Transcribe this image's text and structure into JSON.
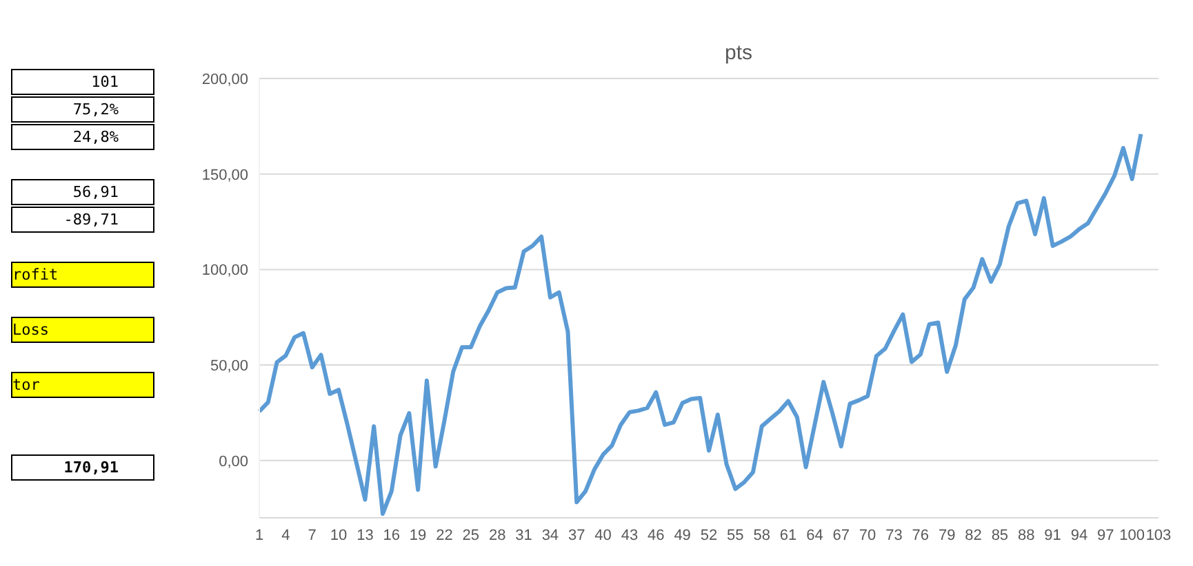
{
  "chart_data": {
    "type": "line",
    "title": "pts",
    "categories": [
      "1",
      null,
      null,
      "4",
      null,
      null,
      "7",
      null,
      null,
      "10",
      null,
      null,
      "13",
      null,
      null,
      "16",
      null,
      null,
      "19",
      null,
      null,
      "22",
      null,
      null,
      "25",
      null,
      null,
      "28",
      null,
      null,
      "31",
      null,
      null,
      "34",
      null,
      null,
      "37",
      null,
      null,
      "40",
      null,
      null,
      "43",
      null,
      null,
      "46",
      null,
      null,
      "49",
      null,
      null,
      "52",
      null,
      null,
      "55",
      null,
      null,
      "58",
      null,
      null,
      "61",
      null,
      null,
      "64",
      null,
      null,
      "67",
      null,
      null,
      "70",
      null,
      null,
      "73",
      null,
      null,
      "76",
      null,
      null,
      "79",
      null,
      null,
      "82",
      null,
      null,
      "85",
      null,
      null,
      "88",
      null,
      null,
      "91",
      null,
      null,
      "94",
      null,
      null,
      "97",
      null,
      null,
      "100",
      null,
      null,
      "103"
    ],
    "series": [
      {
        "color": "#5b9bd5",
        "values": [
          25.7,
          30.5,
          51.4,
          54.9,
          64.5,
          66.7,
          48.8,
          55.3,
          34.9,
          37.0,
          18.7,
          -0.9,
          -20.5,
          17.9,
          -27.9,
          -16.1,
          13.1,
          24.8,
          -15.3,
          41.8,
          -3.1,
          20.9,
          46.6,
          59.3,
          59.3,
          70.2,
          78.4,
          88.0,
          90.2,
          90.6,
          109.4,
          112.4,
          117.2,
          85.4,
          88.0,
          67.5,
          -21.8,
          -16.1,
          -4.8,
          3.1,
          7.8,
          18.7,
          25.3,
          26.1,
          27.5,
          35.7,
          18.7,
          20.0,
          30.1,
          32.2,
          32.7,
          5.2,
          24.0,
          -2.0,
          -14.9,
          -11.4,
          -6.1,
          17.9,
          21.9,
          25.8,
          31.1,
          22.7,
          -3.5,
          18.8,
          41.1,
          24.9,
          7.4,
          29.7,
          31.5,
          33.7,
          54.7,
          58.6,
          67.8,
          76.5,
          51.6,
          55.5,
          71.3,
          72.2,
          46.4,
          60.4,
          84.4,
          90.5,
          105.4,
          93.6,
          102.8,
          122.5,
          134.7,
          136.0,
          118.5,
          137.3,
          112.4,
          114.6,
          117.2,
          121.1,
          124.2,
          132.1,
          140.0,
          149.1,
          163.6,
          147.4,
          170.9,
          null,
          null
        ]
      }
    ],
    "ylim": [
      -30,
      200
    ],
    "yticks": [
      {
        "value": 0,
        "label": "0,00"
      },
      {
        "value": 50,
        "label": "50,00"
      },
      {
        "value": 100,
        "label": "100,00"
      },
      {
        "value": 150,
        "label": "150,00"
      },
      {
        "value": 200,
        "label": "200,00"
      }
    ],
    "grid": "y",
    "marker": "none",
    "line_style": "solid",
    "legend": false,
    "annotations": [
      "101",
      "75,2%",
      "24,8%",
      "56,91",
      "-89,71",
      "rofit",
      "Loss",
      "tor",
      "170,91"
    ]
  }
}
